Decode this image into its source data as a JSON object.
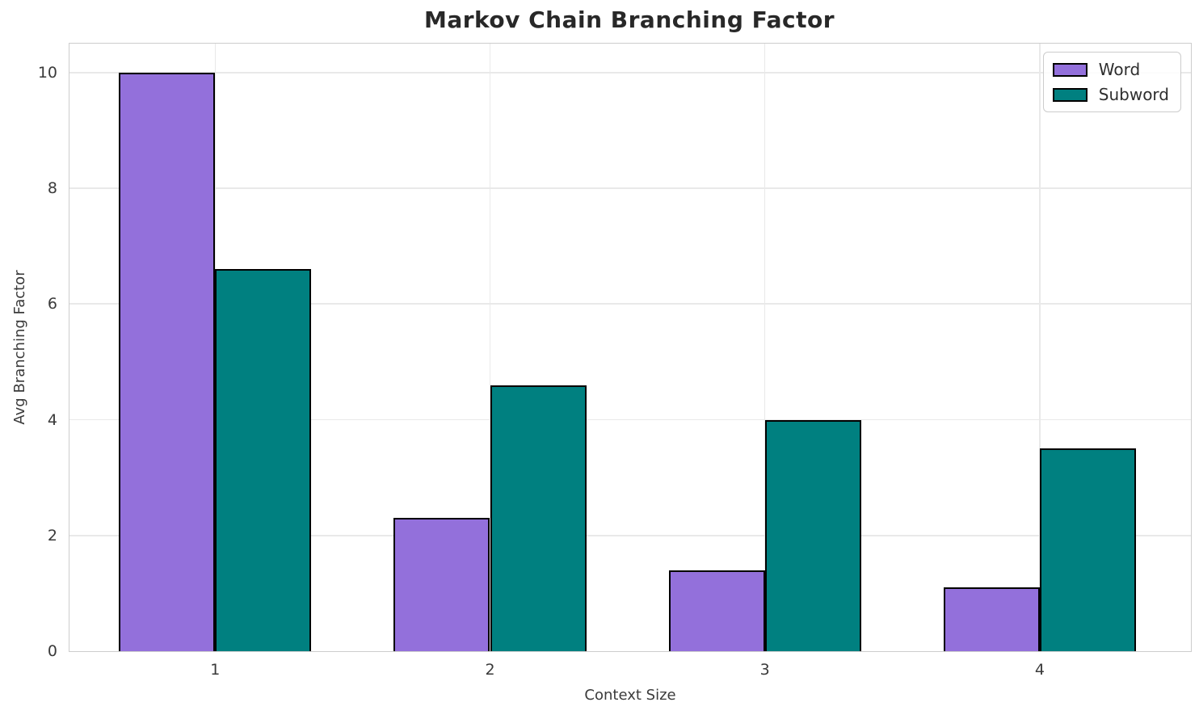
{
  "chart_data": {
    "type": "bar",
    "title": "Markov Chain Branching Factor",
    "xlabel": "Context Size",
    "ylabel": "Avg Branching Factor",
    "categories": [
      "1",
      "2",
      "3",
      "4"
    ],
    "series": [
      {
        "name": "Word",
        "color": "#9370DB",
        "values": [
          10.0,
          2.3,
          1.4,
          1.1
        ]
      },
      {
        "name": "Subword",
        "color": "#008080",
        "values": [
          6.6,
          4.6,
          4.0,
          3.5
        ]
      }
    ],
    "ylim": [
      0,
      10.5
    ],
    "yticks": [
      0,
      2,
      4,
      6,
      8,
      10
    ],
    "xlim": [
      0.47,
      4.55
    ],
    "bar_width_units": 0.35,
    "grid": true,
    "legend_position": "upper right",
    "bar_edge_color": "#000000"
  }
}
